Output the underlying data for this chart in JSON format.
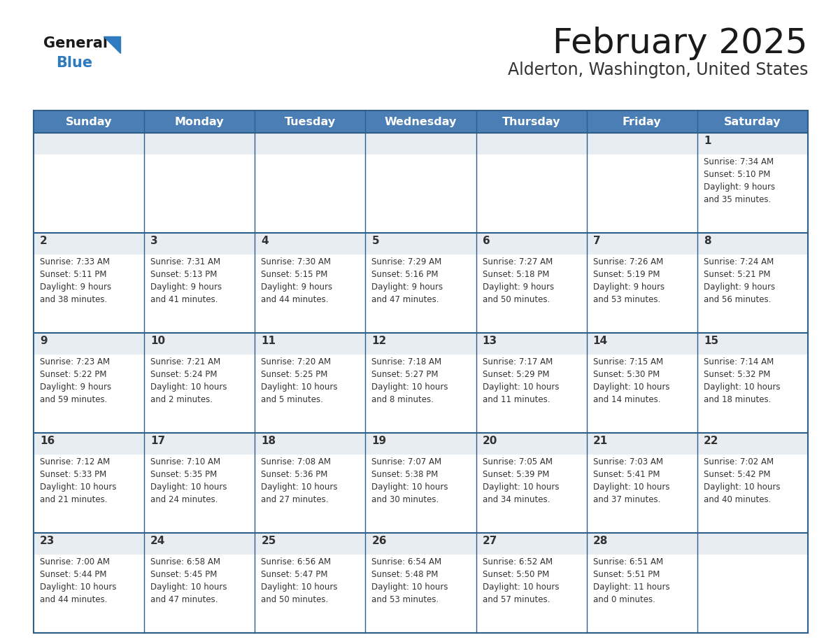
{
  "title": "February 2025",
  "subtitle": "Alderton, Washington, United States",
  "days_of_week": [
    "Sunday",
    "Monday",
    "Tuesday",
    "Wednesday",
    "Thursday",
    "Friday",
    "Saturday"
  ],
  "header_bg_color": "#4a7eb5",
  "header_text_color": "#ffffff",
  "cell_bg_color": "#ffffff",
  "cell_top_bg_color": "#e8edf2",
  "border_color": "#2e5f8a",
  "day_number_color": "#333333",
  "text_color": "#333333",
  "title_color": "#1a1a1a",
  "subtitle_color": "#333333",
  "logo_general_color": "#1a1a1a",
  "logo_blue_color": "#2e7bbf",
  "calendar_data": [
    [
      {
        "day": null,
        "info": null
      },
      {
        "day": null,
        "info": null
      },
      {
        "day": null,
        "info": null
      },
      {
        "day": null,
        "info": null
      },
      {
        "day": null,
        "info": null
      },
      {
        "day": null,
        "info": null
      },
      {
        "day": 1,
        "info": "Sunrise: 7:34 AM\nSunset: 5:10 PM\nDaylight: 9 hours\nand 35 minutes."
      }
    ],
    [
      {
        "day": 2,
        "info": "Sunrise: 7:33 AM\nSunset: 5:11 PM\nDaylight: 9 hours\nand 38 minutes."
      },
      {
        "day": 3,
        "info": "Sunrise: 7:31 AM\nSunset: 5:13 PM\nDaylight: 9 hours\nand 41 minutes."
      },
      {
        "day": 4,
        "info": "Sunrise: 7:30 AM\nSunset: 5:15 PM\nDaylight: 9 hours\nand 44 minutes."
      },
      {
        "day": 5,
        "info": "Sunrise: 7:29 AM\nSunset: 5:16 PM\nDaylight: 9 hours\nand 47 minutes."
      },
      {
        "day": 6,
        "info": "Sunrise: 7:27 AM\nSunset: 5:18 PM\nDaylight: 9 hours\nand 50 minutes."
      },
      {
        "day": 7,
        "info": "Sunrise: 7:26 AM\nSunset: 5:19 PM\nDaylight: 9 hours\nand 53 minutes."
      },
      {
        "day": 8,
        "info": "Sunrise: 7:24 AM\nSunset: 5:21 PM\nDaylight: 9 hours\nand 56 minutes."
      }
    ],
    [
      {
        "day": 9,
        "info": "Sunrise: 7:23 AM\nSunset: 5:22 PM\nDaylight: 9 hours\nand 59 minutes."
      },
      {
        "day": 10,
        "info": "Sunrise: 7:21 AM\nSunset: 5:24 PM\nDaylight: 10 hours\nand 2 minutes."
      },
      {
        "day": 11,
        "info": "Sunrise: 7:20 AM\nSunset: 5:25 PM\nDaylight: 10 hours\nand 5 minutes."
      },
      {
        "day": 12,
        "info": "Sunrise: 7:18 AM\nSunset: 5:27 PM\nDaylight: 10 hours\nand 8 minutes."
      },
      {
        "day": 13,
        "info": "Sunrise: 7:17 AM\nSunset: 5:29 PM\nDaylight: 10 hours\nand 11 minutes."
      },
      {
        "day": 14,
        "info": "Sunrise: 7:15 AM\nSunset: 5:30 PM\nDaylight: 10 hours\nand 14 minutes."
      },
      {
        "day": 15,
        "info": "Sunrise: 7:14 AM\nSunset: 5:32 PM\nDaylight: 10 hours\nand 18 minutes."
      }
    ],
    [
      {
        "day": 16,
        "info": "Sunrise: 7:12 AM\nSunset: 5:33 PM\nDaylight: 10 hours\nand 21 minutes."
      },
      {
        "day": 17,
        "info": "Sunrise: 7:10 AM\nSunset: 5:35 PM\nDaylight: 10 hours\nand 24 minutes."
      },
      {
        "day": 18,
        "info": "Sunrise: 7:08 AM\nSunset: 5:36 PM\nDaylight: 10 hours\nand 27 minutes."
      },
      {
        "day": 19,
        "info": "Sunrise: 7:07 AM\nSunset: 5:38 PM\nDaylight: 10 hours\nand 30 minutes."
      },
      {
        "day": 20,
        "info": "Sunrise: 7:05 AM\nSunset: 5:39 PM\nDaylight: 10 hours\nand 34 minutes."
      },
      {
        "day": 21,
        "info": "Sunrise: 7:03 AM\nSunset: 5:41 PM\nDaylight: 10 hours\nand 37 minutes."
      },
      {
        "day": 22,
        "info": "Sunrise: 7:02 AM\nSunset: 5:42 PM\nDaylight: 10 hours\nand 40 minutes."
      }
    ],
    [
      {
        "day": 23,
        "info": "Sunrise: 7:00 AM\nSunset: 5:44 PM\nDaylight: 10 hours\nand 44 minutes."
      },
      {
        "day": 24,
        "info": "Sunrise: 6:58 AM\nSunset: 5:45 PM\nDaylight: 10 hours\nand 47 minutes."
      },
      {
        "day": 25,
        "info": "Sunrise: 6:56 AM\nSunset: 5:47 PM\nDaylight: 10 hours\nand 50 minutes."
      },
      {
        "day": 26,
        "info": "Sunrise: 6:54 AM\nSunset: 5:48 PM\nDaylight: 10 hours\nand 53 minutes."
      },
      {
        "day": 27,
        "info": "Sunrise: 6:52 AM\nSunset: 5:50 PM\nDaylight: 10 hours\nand 57 minutes."
      },
      {
        "day": 28,
        "info": "Sunrise: 6:51 AM\nSunset: 5:51 PM\nDaylight: 11 hours\nand 0 minutes."
      },
      {
        "day": null,
        "info": null
      }
    ]
  ]
}
